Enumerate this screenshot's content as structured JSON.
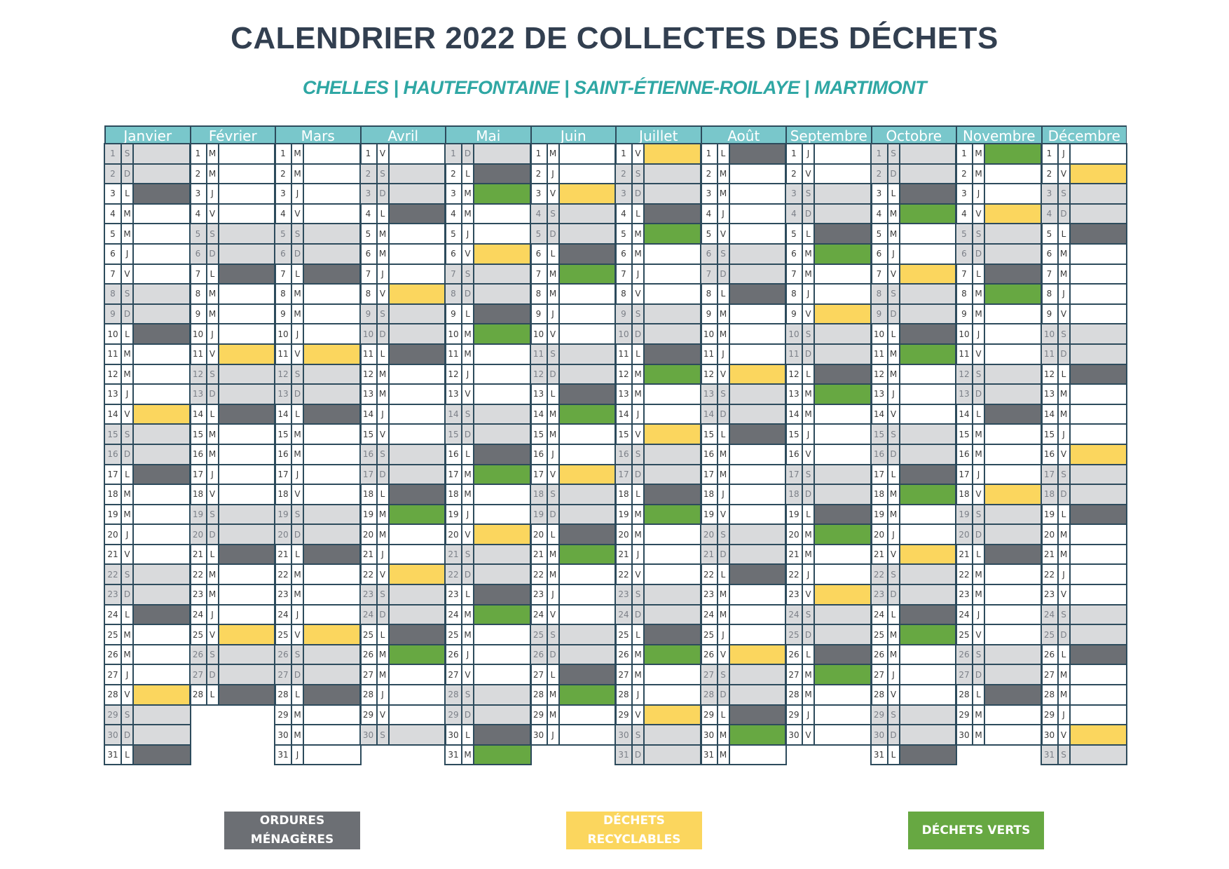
{
  "header": {
    "title": "CALENDRIER 2022 DE COLLECTES DES DÉCHETS",
    "subtitle": "CHELLES | HAUTEFONTAINE | SAINT-ÉTIENNE-ROILAYE | MARTIMONT"
  },
  "colors": {
    "ordures": "#6c6f74",
    "recyclables": "#fbd65e",
    "verts": "#67a842",
    "weekend": "#d9dadc",
    "header": "#79c7cb"
  },
  "months": [
    {
      "name": "Janvier",
      "days": 31,
      "start_dow": 5,
      "collections": {
        "3": "om",
        "10": "om",
        "14": "rec",
        "17": "om",
        "24": "om",
        "28": "rec",
        "31": "om"
      }
    },
    {
      "name": "Février",
      "days": 28,
      "start_dow": 1,
      "collections": {
        "7": "om",
        "11": "rec",
        "14": "om",
        "21": "om",
        "25": "rec",
        "28": "om"
      }
    },
    {
      "name": "Mars",
      "days": 31,
      "start_dow": 1,
      "collections": {
        "7": "om",
        "11": "rec",
        "14": "om",
        "21": "om",
        "25": "rec",
        "28": "om"
      }
    },
    {
      "name": "Avril",
      "days": 30,
      "start_dow": 4,
      "collections": {
        "4": "om",
        "8": "rec",
        "11": "om",
        "18": "om",
        "19": "ver",
        "22": "rec",
        "25": "om",
        "26": "ver"
      }
    },
    {
      "name": "Mai",
      "days": 31,
      "start_dow": 6,
      "collections": {
        "2": "om",
        "3": "ver",
        "6": "rec",
        "9": "om",
        "10": "ver",
        "16": "om",
        "17": "ver",
        "20": "rec",
        "23": "om",
        "24": "ver",
        "30": "om",
        "31": "ver"
      }
    },
    {
      "name": "Juin",
      "days": 30,
      "start_dow": 2,
      "collections": {
        "3": "rec",
        "6": "om",
        "7": "ver",
        "13": "om",
        "14": "ver",
        "17": "rec",
        "20": "om",
        "21": "ver",
        "27": "om",
        "28": "ver"
      }
    },
    {
      "name": "Juillet",
      "days": 31,
      "start_dow": 4,
      "collections": {
        "1": "rec",
        "4": "om",
        "5": "ver",
        "11": "om",
        "12": "ver",
        "15": "rec",
        "18": "om",
        "19": "ver",
        "25": "om",
        "26": "ver",
        "29": "rec"
      }
    },
    {
      "name": "Août",
      "days": 31,
      "start_dow": 0,
      "collections": {
        "1": "om",
        "8": "om",
        "12": "rec",
        "15": "om",
        "22": "om",
        "26": "rec",
        "29": "om",
        "30": "ver"
      }
    },
    {
      "name": "Septembre",
      "days": 30,
      "start_dow": 3,
      "collections": {
        "5": "om",
        "6": "ver",
        "9": "rec",
        "12": "om",
        "13": "ver",
        "19": "om",
        "20": "ver",
        "23": "rec",
        "26": "om",
        "27": "ver"
      }
    },
    {
      "name": "Octobre",
      "days": 31,
      "start_dow": 5,
      "collections": {
        "3": "om",
        "4": "ver",
        "7": "rec",
        "10": "om",
        "11": "ver",
        "17": "om",
        "18": "ver",
        "21": "rec",
        "24": "om",
        "25": "ver",
        "31": "om"
      }
    },
    {
      "name": "Novembre",
      "days": 30,
      "start_dow": 1,
      "collections": {
        "1": "ver",
        "4": "rec",
        "7": "om",
        "8": "ver",
        "14": "om",
        "18": "rec",
        "21": "om",
        "28": "om"
      }
    },
    {
      "name": "Décembre",
      "days": 31,
      "start_dow": 3,
      "collections": {
        "2": "rec",
        "5": "om",
        "12": "om",
        "16": "rec",
        "19": "om",
        "26": "om",
        "30": "rec"
      }
    }
  ],
  "dow_letters": [
    "L",
    "M",
    "M",
    "J",
    "V",
    "S",
    "D"
  ],
  "legend": {
    "om": "ORDURES\nMÉNAGÈRES",
    "rec": "DÉCHETS\nRECYCLABLES",
    "ver": "DÉCHETS VERTS"
  }
}
